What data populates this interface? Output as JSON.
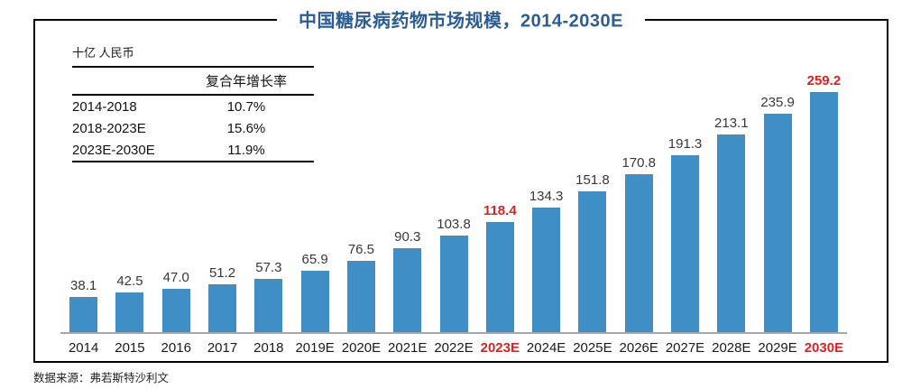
{
  "title": "中国糖尿病药物市场规模，2014-2030E",
  "unit_label": "十亿 人民币",
  "cagr_table": {
    "header": "复合年增长率",
    "rows": [
      {
        "period": "2014-2018",
        "cagr": "10.7%"
      },
      {
        "period": "2018-2023E",
        "cagr": "15.6%"
      },
      {
        "period": "2023E-2030E",
        "cagr": "11.9%"
      }
    ]
  },
  "chart_data": {
    "type": "bar",
    "title": "中国糖尿病药物市场规模，2014-2030E",
    "ylabel": "十亿 人民币",
    "categories": [
      "2014",
      "2015",
      "2016",
      "2017",
      "2018",
      "2019E",
      "2020E",
      "2021E",
      "2022E",
      "2023E",
      "2024E",
      "2025E",
      "2026E",
      "2027E",
      "2028E",
      "2029E",
      "2030E"
    ],
    "values": [
      38.1,
      42.5,
      47.0,
      51.2,
      57.3,
      65.9,
      76.5,
      90.3,
      103.8,
      118.4,
      134.3,
      151.8,
      170.8,
      191.3,
      213.1,
      235.9,
      259.2
    ],
    "highlight_categories": [
      "2023E",
      "2030E"
    ],
    "ylim": [
      0,
      270
    ],
    "grid": false,
    "legend": false,
    "bar_color": "#3F8EC5",
    "highlight_color": "#E02020",
    "axis_color": "#A6A6A6"
  },
  "source_note": "数据来源：弗若斯特沙利文",
  "colors": {
    "title_blue": "#2B5D92",
    "bar_blue": "#3F8EC5",
    "highlight_red": "#E02020",
    "axis_gray": "#A6A6A6"
  }
}
